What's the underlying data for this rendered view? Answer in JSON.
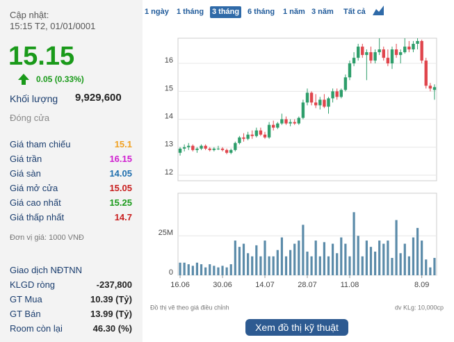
{
  "summary": {
    "updated_label": "Cập nhật:",
    "updated_time": "15:15 T2, 01/01/0001",
    "price": "15.15",
    "change": "0.05 (0.33%)",
    "volume_label": "Khối lượng",
    "volume": "9,929,600",
    "status": "Đóng cửa"
  },
  "stats": [
    {
      "label": "Giá tham chiếu",
      "value": "15.1",
      "color": "#f0a020"
    },
    {
      "label": "Giá trần",
      "value": "16.15",
      "color": "#d020d0"
    },
    {
      "label": "Giá sàn",
      "value": "14.05",
      "color": "#1f6fae"
    },
    {
      "label": "Giá mở cửa",
      "value": "15.05",
      "color": "#c81e1e"
    },
    {
      "label": "Giá cao nhất",
      "value": "15.25",
      "color": "#1a9a1a"
    },
    {
      "label": "Giá thấp nhất",
      "value": "14.7",
      "color": "#c81e1e"
    }
  ],
  "unit_note": "Đơn vị giá: 1000 VNĐ",
  "foreign": {
    "title": "Giao dịch NĐTNN",
    "rows": [
      {
        "label": "KLGD ròng",
        "value": "-237,800"
      },
      {
        "label": "GT Mua",
        "value": "10.39 (Tỷ)"
      },
      {
        "label": "GT Bán",
        "value": "13.99 (Tỷ)"
      },
      {
        "label": "Room còn lại",
        "value": "46.30 (%)"
      }
    ]
  },
  "tabs": [
    "1 ngày",
    "1 tháng",
    "3 tháng",
    "6 tháng",
    "1 năm",
    "3 năm",
    "Tất cả"
  ],
  "active_tab": 2,
  "chart_data": [
    {
      "type": "candlestick",
      "up_color": "#2e9e6b",
      "down_color": "#e0454c",
      "categories": [
        "16.06",
        null,
        null,
        null,
        null,
        null,
        null,
        null,
        null,
        null,
        "30.06",
        null,
        null,
        null,
        null,
        null,
        null,
        null,
        null,
        null,
        "14.07",
        null,
        null,
        null,
        null,
        null,
        null,
        null,
        null,
        null,
        "28.07",
        null,
        null,
        null,
        null,
        null,
        null,
        null,
        null,
        null,
        "11.08",
        null,
        null,
        null,
        null,
        null,
        null,
        null,
        null,
        null,
        null,
        null,
        null,
        null,
        null,
        null,
        null,
        "8.09",
        null,
        null,
        null
      ],
      "open": [
        12.8,
        12.95,
        13.0,
        13.05,
        12.9,
        12.95,
        13.05,
        12.95,
        12.9,
        12.95,
        12.95,
        12.9,
        12.8,
        12.9,
        13.15,
        13.35,
        13.3,
        13.45,
        13.4,
        13.6,
        13.45,
        13.35,
        13.8,
        13.7,
        13.85,
        14.0,
        13.85,
        13.9,
        13.85,
        14.05,
        14.6,
        14.95,
        14.6,
        14.5,
        14.7,
        14.45,
        14.75,
        15.0,
        14.8,
        15.05,
        15.5,
        16.0,
        16.2,
        16.6,
        16.3,
        16.4,
        16.1,
        16.4,
        16.5,
        16.2,
        16.0,
        16.5,
        16.3,
        16.4,
        16.6,
        16.5,
        16.7,
        16.8,
        16.1,
        15.2,
        15.05
      ],
      "high": [
        13.0,
        13.1,
        13.15,
        13.1,
        13.0,
        13.1,
        13.1,
        13.0,
        13.0,
        13.05,
        13.0,
        12.95,
        12.95,
        13.2,
        13.4,
        13.5,
        13.55,
        13.6,
        13.7,
        13.7,
        13.55,
        13.9,
        13.95,
        13.9,
        14.2,
        14.1,
        14.0,
        14.0,
        14.1,
        14.7,
        15.1,
        15.0,
        14.9,
        14.8,
        14.9,
        14.8,
        15.1,
        15.1,
        15.1,
        15.6,
        16.1,
        16.4,
        16.7,
        16.7,
        16.5,
        16.6,
        16.5,
        16.9,
        16.6,
        16.5,
        16.6,
        16.7,
        16.5,
        16.9,
        16.8,
        16.8,
        16.9,
        16.85,
        16.2,
        15.3,
        15.25
      ],
      "low": [
        12.7,
        12.85,
        12.9,
        12.85,
        12.8,
        12.9,
        12.9,
        12.85,
        12.85,
        12.9,
        12.85,
        12.75,
        12.75,
        12.85,
        13.1,
        13.2,
        13.25,
        13.3,
        13.35,
        13.4,
        13.3,
        13.3,
        13.6,
        13.65,
        13.8,
        13.8,
        13.75,
        13.8,
        13.8,
        14.0,
        14.5,
        14.5,
        14.4,
        14.35,
        14.4,
        14.2,
        14.6,
        14.7,
        14.75,
        15.0,
        15.4,
        15.9,
        16.1,
        16.2,
        15.4,
        16.0,
        16.0,
        16.3,
        16.1,
        15.9,
        15.8,
        16.2,
        16.0,
        16.35,
        16.4,
        16.4,
        16.5,
        16.0,
        15.1,
        15.0,
        14.7
      ],
      "close": [
        12.95,
        13.0,
        13.05,
        12.9,
        12.95,
        13.05,
        12.95,
        12.9,
        12.95,
        12.95,
        12.9,
        12.8,
        12.9,
        13.15,
        13.35,
        13.3,
        13.45,
        13.4,
        13.6,
        13.45,
        13.35,
        13.8,
        13.7,
        13.85,
        14.0,
        13.85,
        13.9,
        13.85,
        14.05,
        14.6,
        14.95,
        14.6,
        14.5,
        14.7,
        14.45,
        14.75,
        15.0,
        14.8,
        15.05,
        15.5,
        16.0,
        16.2,
        16.6,
        16.3,
        16.4,
        16.1,
        16.4,
        16.5,
        16.2,
        16.0,
        16.5,
        16.3,
        16.4,
        16.6,
        16.5,
        16.7,
        16.8,
        16.1,
        15.2,
        15.1,
        15.15
      ],
      "ylim": [
        11.8,
        16.9
      ],
      "yticks": [
        12,
        13,
        14,
        15,
        16
      ],
      "grid": true
    },
    {
      "type": "bar",
      "color": "#5b8ba9",
      "values": [
        8,
        8,
        7,
        6,
        8,
        7,
        5,
        7,
        6,
        5,
        6,
        5,
        7,
        22,
        18,
        20,
        14,
        12,
        19,
        12,
        22,
        12,
        12,
        16,
        24,
        12,
        16,
        20,
        22,
        32,
        15,
        12,
        22,
        12,
        21,
        12,
        20,
        14,
        24,
        20,
        12,
        40,
        25,
        12,
        22,
        18,
        15,
        22,
        20,
        22,
        11,
        35,
        14,
        20,
        12,
        24,
        30,
        22,
        10,
        5,
        11
      ],
      "ylim": [
        0,
        52
      ],
      "yticks": [
        0,
        {
          "value": 25,
          "label": "25M"
        }
      ],
      "grid": true
    }
  ],
  "notes": {
    "left": "Đồ thị vẽ theo giá điều chỉnh",
    "right": "dv KLg: 10,000cp"
  },
  "button": "Xem đồ thị kỹ thuật"
}
